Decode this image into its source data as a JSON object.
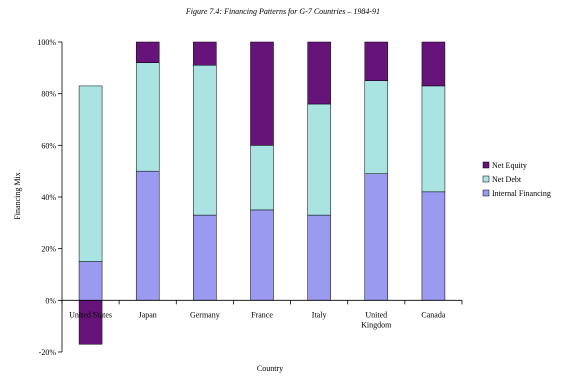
{
  "chart_data": {
    "type": "bar",
    "stacked": true,
    "title": "Figure 7.4: Financing Patterns for G-7 Countries – 1984-91",
    "xlabel": "Country",
    "ylabel": "Financing Mix",
    "ylim": [
      -20,
      100
    ],
    "yticks": [
      "-20%",
      "0%",
      "20%",
      "40%",
      "60%",
      "80%",
      "100%"
    ],
    "ytick_values": [
      -20,
      0,
      20,
      40,
      60,
      80,
      100
    ],
    "categories": [
      "United States",
      "Japan",
      "Germany",
      "France",
      "Italy",
      "United Kingdom",
      "Canada"
    ],
    "category_labels": [
      [
        "United States"
      ],
      [
        "Japan"
      ],
      [
        "Germany"
      ],
      [
        "France"
      ],
      [
        "Italy"
      ],
      [
        "United",
        "Kingdom"
      ],
      [
        "Canada"
      ]
    ],
    "series": [
      {
        "name": "Internal Financing",
        "color": "#9a9af0",
        "values": [
          15,
          50,
          33,
          35,
          33,
          49,
          42
        ]
      },
      {
        "name": "Net Debt",
        "color": "#a9e4e2",
        "values": [
          68,
          42,
          58,
          25,
          43,
          36,
          41
        ]
      },
      {
        "name": "Net Equity",
        "color": "#66147a",
        "values": [
          -17,
          8,
          9,
          40,
          24,
          15,
          17
        ]
      }
    ],
    "legend_order": [
      "Net Equity",
      "Net Debt",
      "Internal Financing"
    ],
    "legend_position": "right",
    "grid": false
  }
}
